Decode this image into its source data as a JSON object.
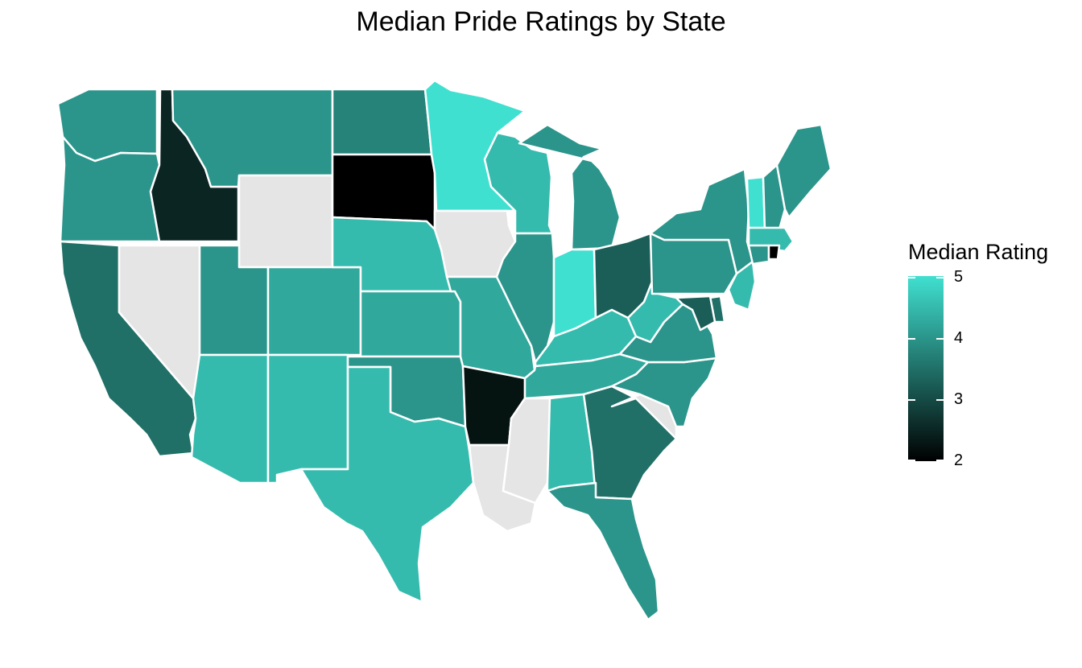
{
  "chart_data": {
    "type": "choropleth",
    "title": "Median Pride Ratings by State",
    "legend": {
      "title": "Median Rating",
      "ticks": [
        "5",
        "4",
        "3",
        "2"
      ],
      "range": [
        2,
        5
      ],
      "color_low": "#000000",
      "color_high": "#40E0D0",
      "na_color": "#E5E5E5",
      "placement": "right"
    },
    "values": {
      "WA": 4,
      "OR": 4,
      "CA": 3.5,
      "ID": 2.5,
      "NV": null,
      "MT": 4,
      "WY": null,
      "UT": 4,
      "AZ": 4.5,
      "CO": 4.25,
      "NM": 4.5,
      "ND": 3.75,
      "SD": 2,
      "NE": 4.5,
      "KS": 4.25,
      "OK": 4,
      "TX": 4.5,
      "MN": 5,
      "IA": null,
      "MO": 4.25,
      "AR": 2.25,
      "LA": null,
      "WI": 4.5,
      "IL": 4,
      "MI": 4,
      "IN": 5,
      "OH": 3.25,
      "KY": 4.5,
      "TN": 4.25,
      "MS": null,
      "AL": 4.5,
      "GA": 3.5,
      "FL": 4,
      "SC": null,
      "NC": 4,
      "VA": 4,
      "WV": 4.5,
      "PA": 4,
      "NY": 4,
      "VT": 5,
      "NH": 4,
      "ME": 4,
      "MA": 4.5,
      "CT": 4,
      "RI": 2,
      "NJ": 4.5,
      "DE": 3.5,
      "MD": 3.25
    }
  }
}
